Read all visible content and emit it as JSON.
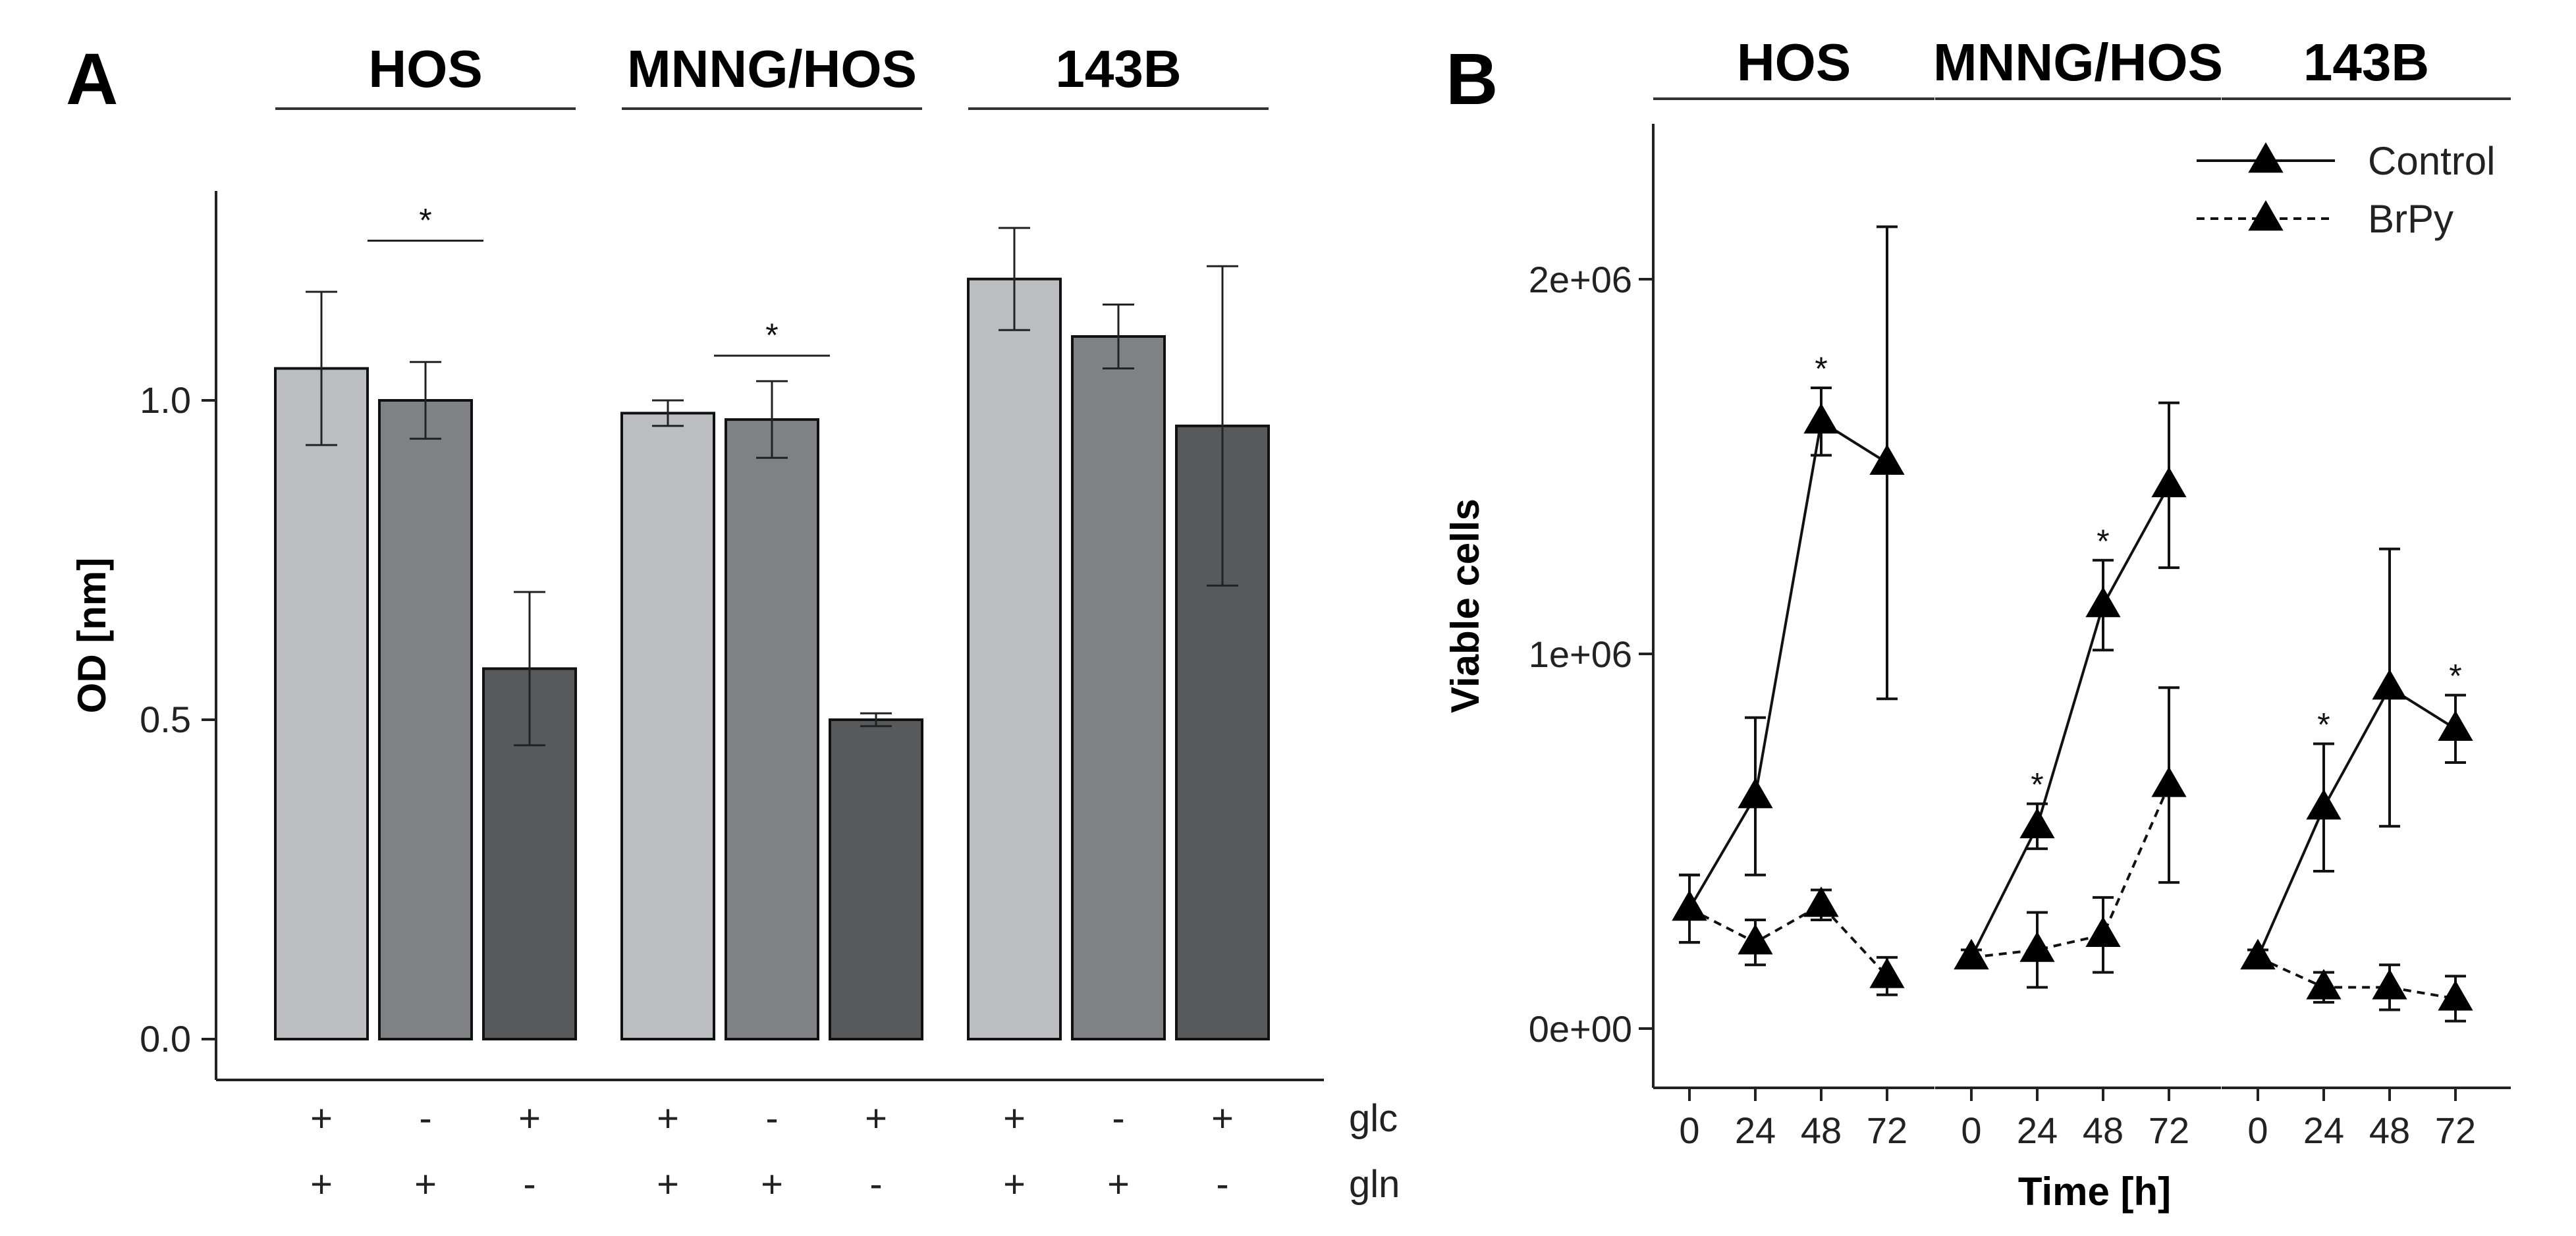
{
  "panel_labels": {
    "a": "A",
    "b": "B"
  },
  "chart_data": [
    {
      "id": "A",
      "type": "bar",
      "ylabel": "OD [nm]",
      "ylim": [
        0,
        1.25
      ],
      "yticks": [
        0.0,
        0.5,
        1.0
      ],
      "ytick_labels": [
        "0.0",
        "0.5",
        "1.0"
      ],
      "groups": [
        "HOS",
        "MNNG/HOS",
        "143B"
      ],
      "condition_rows": [
        {
          "label": "glc",
          "signs": [
            "+",
            "-",
            "+"
          ]
        },
        {
          "label": "gln",
          "signs": [
            "+",
            "+",
            "-"
          ]
        }
      ],
      "bar_colors": [
        "#bcbdc0",
        "#808184",
        "#58595b"
      ],
      "values": [
        [
          1.05,
          1.0,
          0.58
        ],
        [
          0.98,
          0.97,
          0.5
        ],
        [
          1.19,
          1.1,
          0.96
        ]
      ],
      "errors": [
        [
          0.12,
          0.06,
          0.12
        ],
        [
          0.02,
          0.06,
          0.01
        ],
        [
          0.08,
          0.05,
          0.25
        ]
      ],
      "significance": [
        {
          "group": 0,
          "from_bar": 0,
          "to_bar": 2,
          "y": 1.25,
          "label": "*"
        },
        {
          "group": 1,
          "from_bar": 0,
          "to_bar": 2,
          "y": 1.07,
          "label": "*"
        }
      ]
    },
    {
      "id": "B",
      "type": "line",
      "ylabel": "Viable cells",
      "xlabel": "Time [h]",
      "ylim": [
        -150000,
        2430000
      ],
      "yticks": [
        0,
        1000000,
        2000000
      ],
      "ytick_labels": [
        "0e+00",
        "1e+06",
        "2e+06"
      ],
      "x": [
        0,
        24,
        48,
        72
      ],
      "xtick_labels": [
        "0",
        "24",
        "48",
        "72"
      ],
      "facets": [
        "HOS",
        "MNNG/HOS",
        "143B"
      ],
      "legend": {
        "position": "top-right",
        "entries": [
          "Control",
          "BrPy"
        ]
      },
      "series": [
        {
          "name": "Control",
          "line": "solid",
          "values": [
            [
              320000,
              620000,
              1620000,
              1510000
            ],
            [
              190000,
              540000,
              1130000,
              1450000
            ],
            [
              190000,
              590000,
              910000,
              800000
            ]
          ],
          "errors": [
            [
              90000,
              210000,
              90000,
              630000
            ],
            [
              20000,
              60000,
              120000,
              220000
            ],
            [
              20000,
              170000,
              370000,
              90000
            ]
          ]
        },
        {
          "name": "BrPy",
          "line": "dashed",
          "values": [
            [
              320000,
              230000,
              330000,
              140000
            ],
            [
              190000,
              210000,
              250000,
              650000
            ],
            [
              190000,
              110000,
              110000,
              80000
            ]
          ],
          "errors": [
            [
              90000,
              60000,
              40000,
              50000
            ],
            [
              20000,
              100000,
              100000,
              260000
            ],
            [
              20000,
              40000,
              60000,
              60000
            ]
          ]
        }
      ],
      "significance": [
        {
          "facet": 0,
          "x": 48,
          "label": "*"
        },
        {
          "facet": 1,
          "x": 24,
          "label": "*"
        },
        {
          "facet": 1,
          "x": 48,
          "label": "*"
        },
        {
          "facet": 2,
          "x": 24,
          "label": "*"
        },
        {
          "facet": 2,
          "x": 72,
          "label": "*"
        }
      ]
    }
  ]
}
